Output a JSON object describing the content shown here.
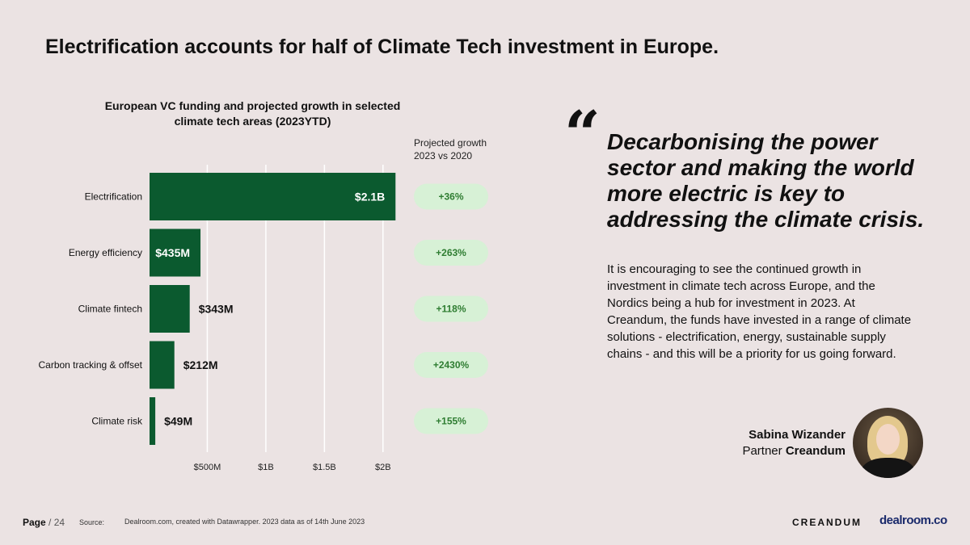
{
  "page": {
    "title": "Electrification accounts for half of Climate Tech investment in Europe."
  },
  "chart_data": {
    "type": "bar",
    "orientation": "horizontal",
    "title": "European VC funding and projected growth in selected climate tech areas (2023YTD)",
    "categories": [
      "Electrification",
      "Energy efficiency",
      "Climate fintech",
      "Carbon tracking & offset",
      "Climate risk"
    ],
    "values": [
      2100,
      435,
      343,
      212,
      49
    ],
    "value_labels": [
      "$2.1B",
      "$435M",
      "$343M",
      "$212M",
      "$49M"
    ],
    "unit": "USD millions",
    "xlim": [
      0,
      2200
    ],
    "x_ticks": [
      500,
      1000,
      1500,
      2000
    ],
    "x_tick_labels": [
      "$500M",
      "$1B",
      "$1.5B",
      "$2B"
    ],
    "grid": true,
    "growth_header": [
      "Projected growth",
      "2023 vs 2020"
    ],
    "growth": [
      "+36%",
      "+263%",
      "+118%",
      "+2430%",
      "+155%"
    ],
    "bar_color": "#0b5a2f",
    "pill_color": "#d7f1d6",
    "pill_text_color": "#2f7d32"
  },
  "quote": {
    "mark": "“",
    "headline": "Decarbonising the power sector and making the world more electric is key to addressing the climate crisis.",
    "body": "It is encouraging to see the continued growth in investment in climate tech across Europe, and the Nordics being a hub for investment in 2023. At Creandum, the funds have invested in a range of climate solutions - electrification, energy, sustainable supply chains - and this will be a priority for us going forward.",
    "person_name": "Sabina Wizander",
    "person_role": "Partner",
    "person_company": "Creandum"
  },
  "footer": {
    "page_label": "Page",
    "page_number": "/ 24",
    "source_label": "Source:",
    "source_text": "Dealroom.com, created with Datawrapper. 2023 data as of 14th June 2023",
    "logo_left": "CREANDUM",
    "logo_right": "dealroom.co"
  }
}
